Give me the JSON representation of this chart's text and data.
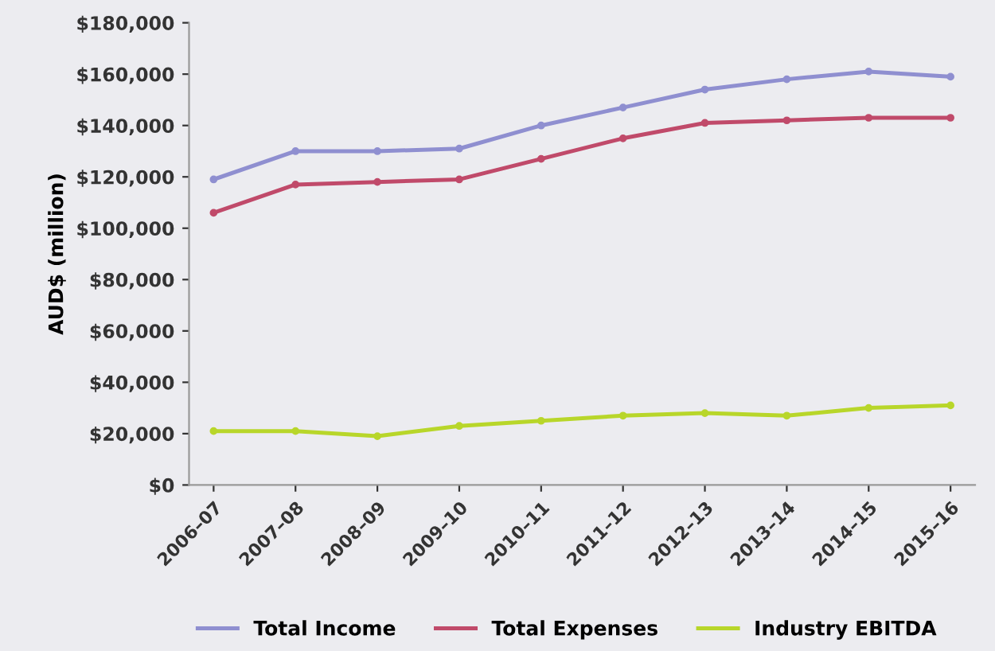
{
  "chart_data": {
    "type": "line",
    "ylabel": "AUD$ (million)",
    "categories": [
      "2006–07",
      "2007–08",
      "2008–09",
      "2009–10",
      "2010–11",
      "2011–12",
      "2012–13",
      "2013–14",
      "2014–15",
      "2015–16"
    ],
    "series": [
      {
        "name": "Total Income",
        "color": "#8f8fd0",
        "values": [
          119000,
          130000,
          130000,
          131000,
          140000,
          147000,
          154000,
          158000,
          161000,
          159000
        ]
      },
      {
        "name": "Total Expenses",
        "color": "#c04a6a",
        "values": [
          106000,
          117000,
          118000,
          119000,
          127000,
          135000,
          141000,
          142000,
          143000,
          143000
        ]
      },
      {
        "name": "Industry EBITDA",
        "color": "#b8d62a",
        "values": [
          21000,
          21000,
          19000,
          23000,
          25000,
          27000,
          28000,
          27000,
          30000,
          31000
        ]
      }
    ],
    "ylim": [
      0,
      180000
    ],
    "yticks": [
      {
        "value": 0,
        "label": "$0"
      },
      {
        "value": 20000,
        "label": "$20,000"
      },
      {
        "value": 40000,
        "label": "$40,000"
      },
      {
        "value": 60000,
        "label": "$60,000"
      },
      {
        "value": 80000,
        "label": "$80,000"
      },
      {
        "value": 100000,
        "label": "$100,000"
      },
      {
        "value": 120000,
        "label": "$120,000"
      },
      {
        "value": 140000,
        "label": "$140,000"
      },
      {
        "value": 160000,
        "label": "$160,000"
      },
      {
        "value": 180000,
        "label": "$180,000"
      }
    ],
    "grid": false,
    "legend": "bottom",
    "marker": "circle",
    "line_style": "solid"
  }
}
